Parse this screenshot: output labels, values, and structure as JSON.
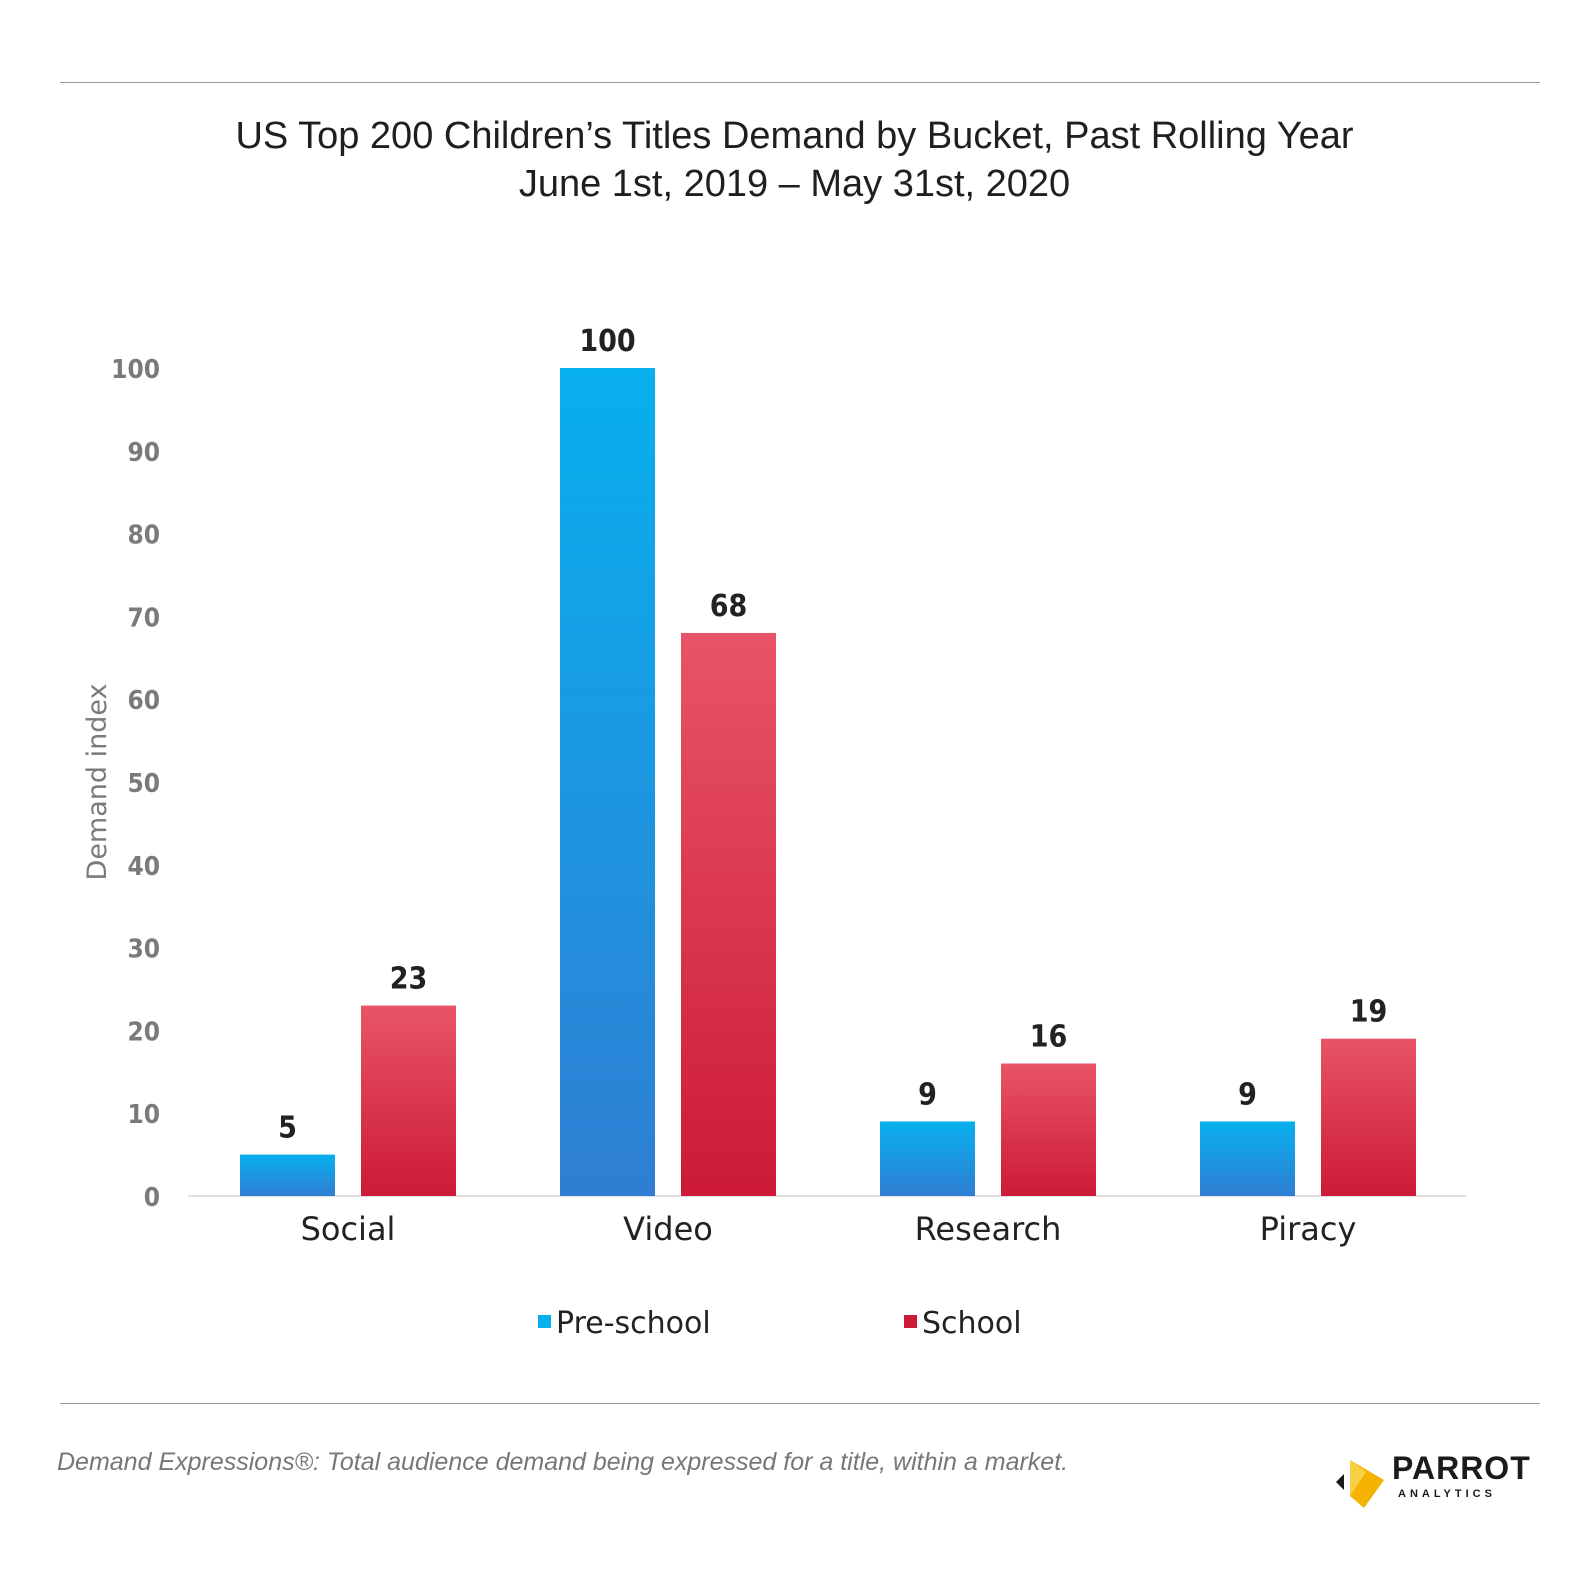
{
  "header": {
    "title_line1": "US Top 200 Children’s Titles Demand by Bucket, Past Rolling Year",
    "title_line2": "June 1st, 2019 – May 31st, 2020"
  },
  "chart_data": {
    "type": "bar",
    "title": "US Top 200 Children’s Titles Demand by Bucket, Past Rolling Year",
    "subtitle": "June 1st, 2019 – May 31st, 2020",
    "categories": [
      "Social",
      "Video",
      "Research",
      "Piracy"
    ],
    "series": [
      {
        "name": "Pre-school",
        "values": [
          5,
          100,
          9,
          9
        ]
      },
      {
        "name": "School",
        "values": [
          23,
          68,
          16,
          19
        ]
      }
    ],
    "value_labels": [
      [
        "5",
        "100",
        "9",
        "9"
      ],
      [
        "23",
        "68",
        "16",
        "19"
      ]
    ],
    "xlabel": "",
    "ylabel": "Demand index",
    "ylim": [
      0,
      100
    ],
    "yticks": [
      0,
      10,
      20,
      30,
      40,
      50,
      60,
      70,
      80,
      90,
      100
    ],
    "grid": false,
    "legend_position": "bottom-center",
    "colors": {
      "preschool_top": "#08b0ee",
      "preschool_bottom": "#2f7ed3",
      "school_top": "#e85468",
      "school_bottom": "#cc1a37"
    }
  },
  "footer": {
    "footnote": "Demand Expressions®:  Total audience demand being expressed for a title, within a market.",
    "logo_word": "PARROT",
    "logo_sub": "ANALYTICS"
  }
}
